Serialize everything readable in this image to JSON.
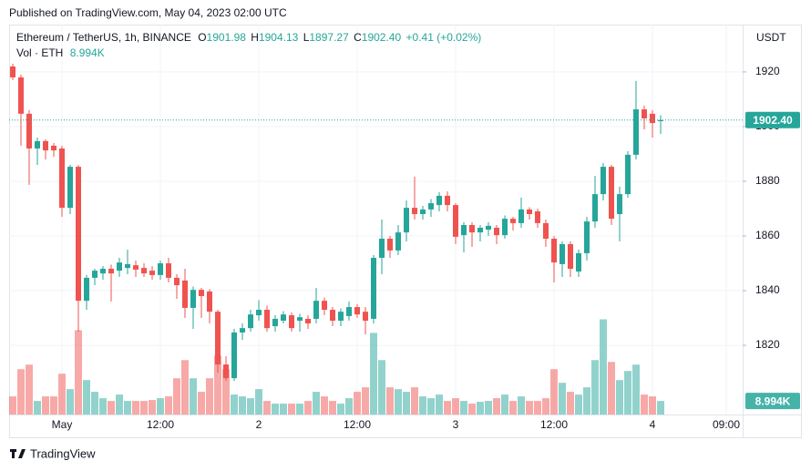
{
  "chart_data": {
    "type": "candlestick",
    "published": "Published on TradingView.com, May 04, 2023 02:00 UTC",
    "title": "Ethereum / TetherUS, 1h, BINANCE",
    "ohlc_prefixes": [
      "O",
      "H",
      "L",
      "C"
    ],
    "change_label": "+0.41 (+0.02%)",
    "y_axis_label": "USDT",
    "footer": "TradingView",
    "up_color": "#26a69a",
    "down_color": "#ef5350",
    "grid": true,
    "categories": [
      null,
      null,
      null,
      null,
      null,
      null,
      "May",
      null,
      null,
      null,
      null,
      null,
      null,
      null,
      null,
      null,
      null,
      null,
      "12:00",
      null,
      null,
      null,
      null,
      null,
      null,
      null,
      null,
      null,
      null,
      null,
      "2",
      null,
      null,
      null,
      null,
      null,
      null,
      null,
      null,
      null,
      null,
      null,
      "12:00",
      null,
      null,
      null,
      null,
      null,
      null,
      null,
      null,
      null,
      null,
      null,
      "3",
      null,
      null,
      null,
      null,
      null,
      null,
      null,
      null,
      null,
      null,
      null,
      "12:00",
      null,
      null,
      null,
      null,
      null,
      null,
      null,
      null,
      null,
      null,
      null,
      "4",
      null,
      null,
      null,
      null,
      null,
      null,
      null,
      null,
      "09:00",
      null
    ],
    "open": [
      1922.0,
      1918.0,
      1904.7,
      1892.0,
      1894.7,
      1893.0,
      1892.0,
      1870.3,
      1885.3,
      1836.3,
      1844.7,
      1846.3,
      1848.0,
      1847.3,
      1848.3,
      1849.3,
      1848.3,
      1847.3,
      1845.7,
      1850.0,
      1844.7,
      1843.7,
      1833.7,
      1840.3,
      1839.7,
      1832.3,
      1813.0,
      1808.0,
      1824.7,
      1826.3,
      1831.0,
      1833.0,
      1827.0,
      1829.0,
      1831.0,
      1829.0,
      1829.7,
      1829.7,
      1836.3,
      1833.0,
      1829.0,
      1830.7,
      1834.0,
      1832.3,
      1829.7,
      1852.0,
      1859.0,
      1854.7,
      1861.3,
      1870.3,
      1868.0,
      1869.7,
      1871.3,
      1874.7,
      1871.3,
      1860.3,
      1864.0,
      1861.3,
      1862.3,
      1863.0,
      1860.3,
      1866.3,
      1864.7,
      1869.7,
      1869.0,
      1864.7,
      1859.0,
      1849.7,
      1857.0,
      1847.0,
      1853.7,
      1865.3,
      1875.3,
      1885.3,
      1868.0,
      1875.3,
      1889.7,
      1906.3,
      1904.7,
      1901.98,
      null,
      null,
      null,
      null,
      null,
      null,
      null,
      null,
      null
    ],
    "high": [
      1923.0,
      1919.0,
      1906.0,
      1896.0,
      1895.3,
      1894.0,
      1893.0,
      1886.0,
      1886.0,
      1845.7,
      1848.0,
      1849.0,
      1849.5,
      1852.0,
      1855.0,
      1851.0,
      1850.0,
      1849.0,
      1851.0,
      1852.0,
      1846.0,
      1848.0,
      1841.5,
      1841.0,
      1840.5,
      1833.0,
      1816.0,
      1826.0,
      1828.0,
      1833.0,
      1836.5,
      1834.5,
      1831.0,
      1832.5,
      1832.0,
      1831.5,
      1831.0,
      1841.0,
      1837.5,
      1834.0,
      1833.5,
      1836.0,
      1835.0,
      1834.0,
      1853.0,
      1866.0,
      1860.0,
      1864.0,
      1873.0,
      1881.7,
      1871.0,
      1873.5,
      1876.0,
      1876.3,
      1872.0,
      1865.0,
      1865.0,
      1864.0,
      1865.0,
      1864.0,
      1867.5,
      1867.0,
      1874.0,
      1870.5,
      1870.0,
      1866.0,
      1860.0,
      1858.0,
      1858.0,
      1855.0,
      1867.0,
      1882.0,
      1886.7,
      1886.0,
      1878.0,
      1891.0,
      1916.7,
      1907.7,
      1906.0,
      1904.13,
      null,
      null,
      null,
      null,
      null,
      null,
      null,
      null,
      null
    ],
    "low": [
      1917.0,
      1893.0,
      1878.7,
      1886.0,
      1888.0,
      1889.0,
      1867.0,
      1868.0,
      1825.0,
      1833.0,
      1842.0,
      1844.0,
      1836.0,
      1845.0,
      1846.0,
      1845.0,
      1845.0,
      1844.0,
      1844.0,
      1843.0,
      1837.0,
      1830.0,
      1826.0,
      1830.0,
      1828.0,
      1810.0,
      1807.0,
      1807.0,
      1822.0,
      1825.0,
      1829.0,
      1825.0,
      1825.0,
      1828.0,
      1825.0,
      1825.0,
      1826.0,
      1828.0,
      1831.0,
      1827.0,
      1827.0,
      1829.0,
      1830.0,
      1824.0,
      1828.0,
      1846.0,
      1852.0,
      1853.0,
      1858.0,
      1866.0,
      1866.0,
      1867.0,
      1869.0,
      1869.0,
      1857.0,
      1854.0,
      1856.0,
      1858.0,
      1860.0,
      1857.0,
      1859.0,
      1862.0,
      1863.0,
      1866.0,
      1863.0,
      1856.0,
      1843.0,
      1845.0,
      1845.0,
      1845.0,
      1851.0,
      1863.0,
      1873.0,
      1864.0,
      1858.0,
      1874.0,
      1888.0,
      1899.0,
      1896.0,
      1897.27,
      null,
      null,
      null,
      null,
      null,
      null,
      null,
      null,
      null
    ],
    "close": [
      1918.0,
      1904.7,
      1892.0,
      1894.7,
      1891.3,
      1891.3,
      1870.3,
      1885.3,
      1836.3,
      1844.7,
      1847.3,
      1848.0,
      1846.3,
      1850.3,
      1849.7,
      1847.7,
      1846.3,
      1845.7,
      1850.0,
      1844.7,
      1842.0,
      1833.7,
      1840.3,
      1838.0,
      1832.3,
      1813.0,
      1808.0,
      1824.7,
      1826.3,
      1831.3,
      1833.0,
      1826.3,
      1829.7,
      1831.3,
      1826.3,
      1830.3,
      1828.0,
      1836.3,
      1833.0,
      1829.0,
      1832.3,
      1834.0,
      1831.3,
      1829.0,
      1852.0,
      1859.0,
      1854.7,
      1861.3,
      1870.3,
      1868.0,
      1869.7,
      1872.0,
      1874.7,
      1871.3,
      1859.7,
      1864.0,
      1861.3,
      1863.0,
      1863.7,
      1860.3,
      1866.3,
      1864.7,
      1869.7,
      1868.0,
      1864.7,
      1859.0,
      1850.3,
      1857.0,
      1848.0,
      1853.7,
      1865.3,
      1875.3,
      1885.3,
      1866.3,
      1875.3,
      1889.7,
      1906.3,
      1903.0,
      1901.3,
      1902.4,
      null,
      null,
      null,
      null,
      null,
      null,
      null,
      null,
      null
    ],
    "last_price_label": "1902.40",
    "ylim": [
      1794.7,
      1937.3
    ],
    "yticks": [
      1820,
      1840,
      1860,
      1880,
      1900,
      1920
    ],
    "volume": {
      "name": "Vol · ETH",
      "axis": "y2",
      "last_label": "8.994K",
      "values": [
        12000,
        30000,
        33000,
        9000,
        12000,
        12000,
        27000,
        16800,
        55800,
        22800,
        15000,
        10800,
        9000,
        13200,
        9000,
        9000,
        9000,
        9600,
        10800,
        12000,
        24000,
        36000,
        24000,
        15000,
        24000,
        39000,
        30000,
        13200,
        12000,
        10800,
        16800,
        9000,
        7200,
        7200,
        7200,
        7200,
        9000,
        15000,
        12000,
        9000,
        7200,
        10800,
        15000,
        18000,
        54000,
        36000,
        18000,
        16800,
        15000,
        18000,
        12000,
        10800,
        13200,
        9000,
        10800,
        9000,
        7200,
        8400,
        9000,
        10800,
        13200,
        9000,
        12000,
        9000,
        9000,
        10800,
        30000,
        21000,
        15000,
        13200,
        18000,
        36000,
        63000,
        34800,
        22800,
        28800,
        33000,
        13200,
        12000,
        8994,
        null,
        null,
        null,
        null,
        null,
        null,
        null,
        null,
        null
      ]
    },
    "y2lim": [
      0,
      258000
    ]
  }
}
